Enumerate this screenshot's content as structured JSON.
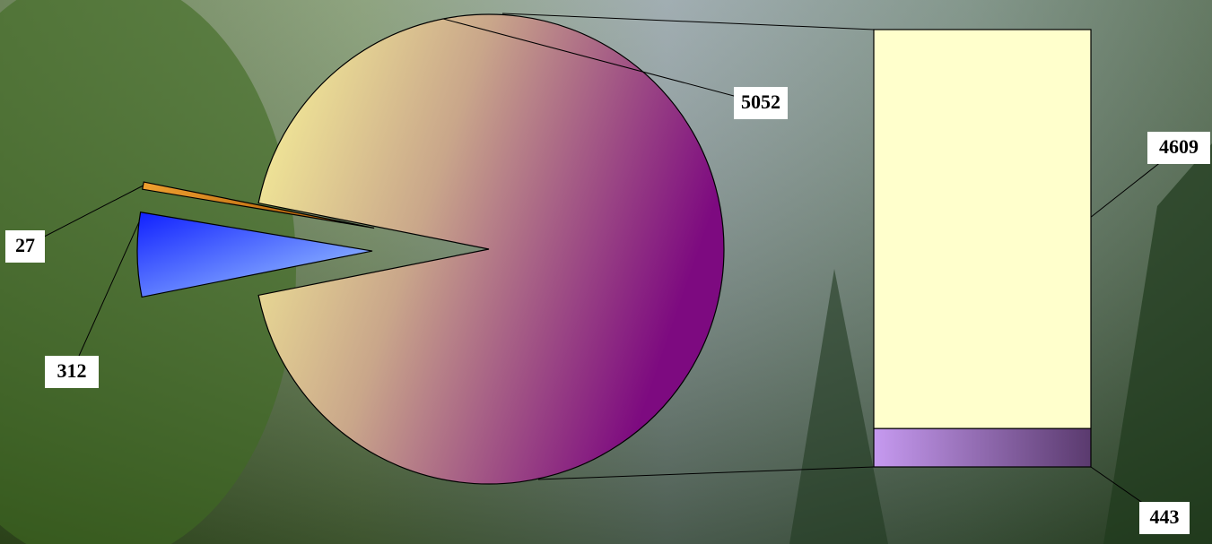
{
  "chart_data": {
    "type": "bar-of-pie",
    "values": [
      5052,
      312,
      27
    ],
    "colors": [
      "#8a1a86",
      "#2f4dff",
      "#d77a10"
    ],
    "secondary": {
      "values": [
        4609,
        443
      ],
      "colors": [
        "#ffffcc",
        "#7a4a9a"
      ]
    }
  }
}
